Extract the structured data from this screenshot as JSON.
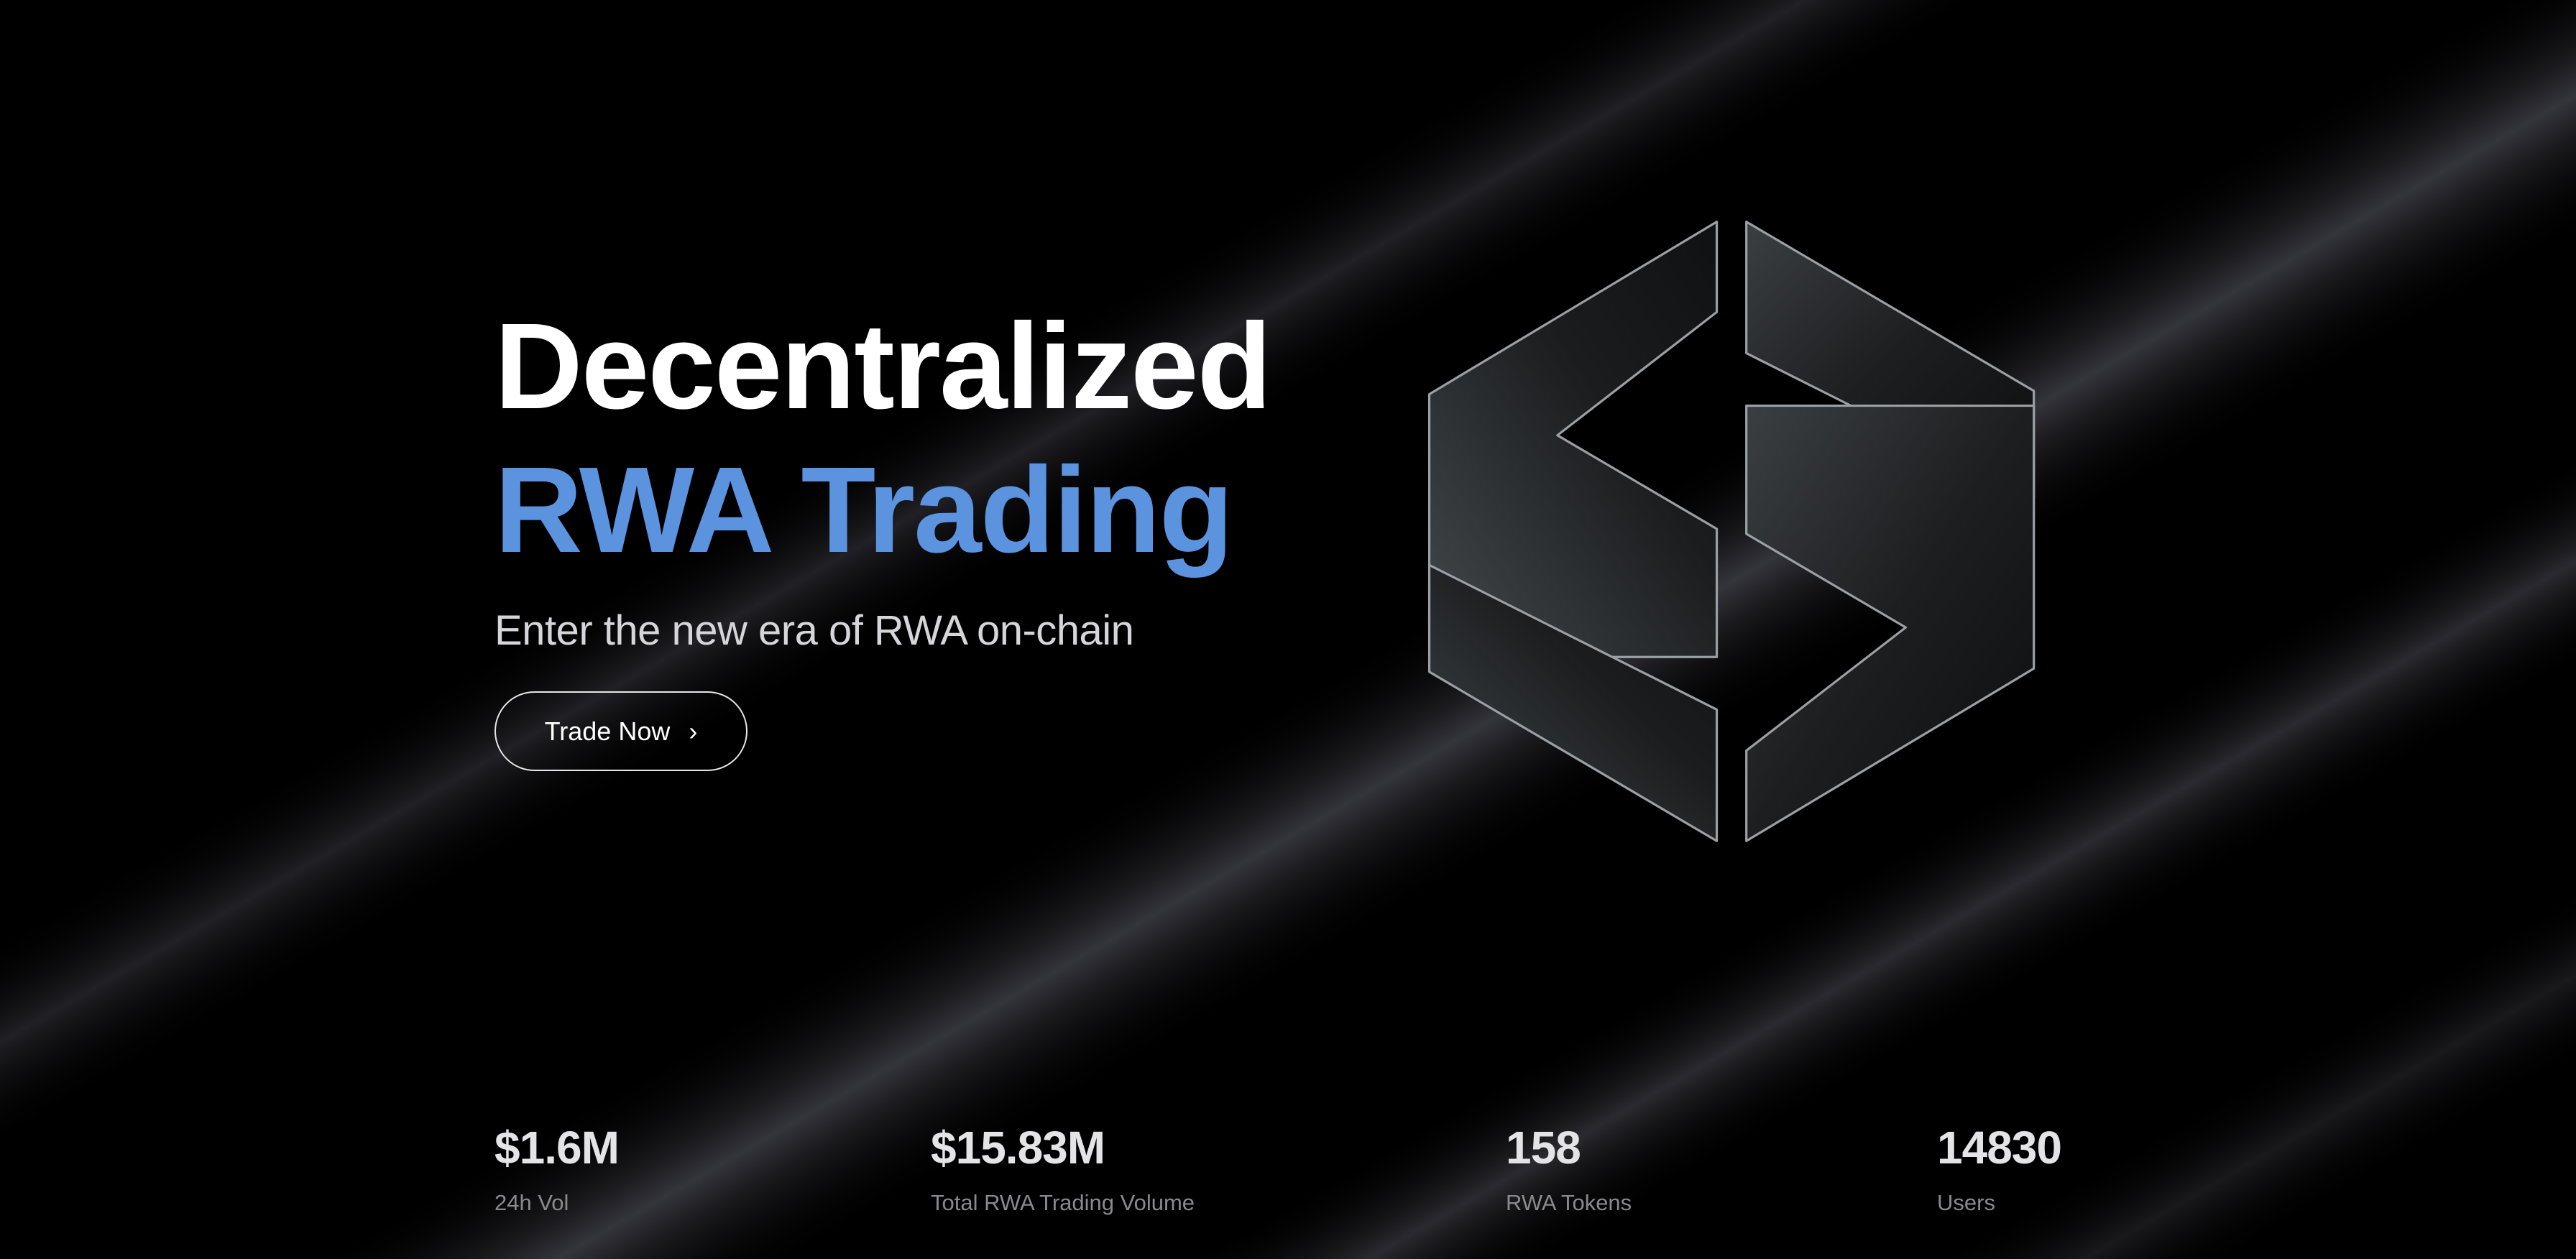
{
  "hero": {
    "title_line1": "Decentralized",
    "title_line2": "RWA Trading",
    "subtitle": "Enter the new era of RWA on-chain",
    "cta_label": "Trade Now",
    "cta_icon": "chevron-right-icon",
    "accent_color": "#5b93de"
  },
  "logo": {
    "icon": "glass-s-logo"
  },
  "stats": [
    {
      "value": "$1.6M",
      "label": "24h Vol"
    },
    {
      "value": "$15.83M",
      "label": "Total RWA Trading Volume"
    },
    {
      "value": "158",
      "label": "RWA Tokens"
    },
    {
      "value": "14830",
      "label": "Users"
    }
  ]
}
